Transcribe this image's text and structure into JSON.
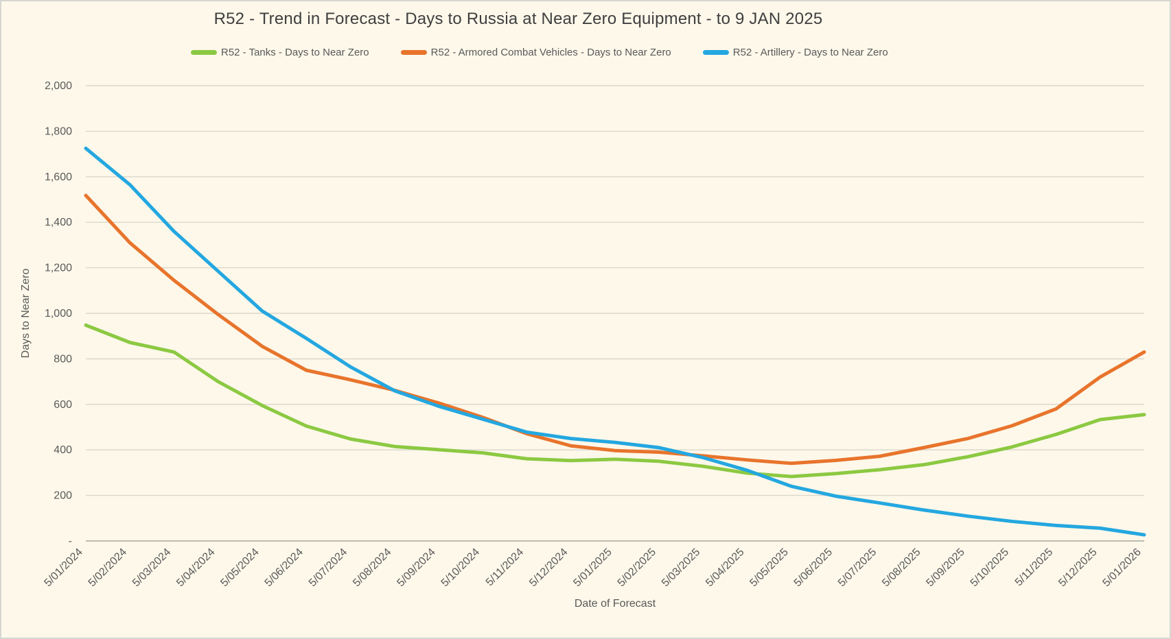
{
  "window": {
    "background": "#FDF8EA",
    "border_color": "#D8D6D2",
    "grid_color": "#D9D7CB",
    "axis_line_color": "#BDBBB1",
    "tick_text_color": "#595959",
    "title_text_color": "#3F3F3F"
  },
  "header": {
    "title": "R52 - Trend in Forecast - Days to Russia at Near Zero Equipment - to 9 JAN 2025"
  },
  "legend": {
    "items": [
      {
        "label": "R52 - Tanks - Days to Near Zero",
        "color": "#8CC942"
      },
      {
        "label": "R52 - Armored Combat Vehicles - Days to Near Zero",
        "color": "#E8742C"
      },
      {
        "label": "R52 - Artillery - Days to Near Zero",
        "color": "#24A7E0"
      }
    ]
  },
  "axes": {
    "xlabel": "Date of Forecast",
    "ylabel": "Days to Near Zero"
  },
  "chart_data": {
    "type": "line",
    "title": "R52 - Trend in Forecast - Days to Russia at Near Zero Equipment - to 9 JAN 2025",
    "xlabel": "Date of Forecast",
    "ylabel": "Days to Near Zero",
    "ylim": [
      0,
      2000
    ],
    "ytick_step": 200,
    "ytick_labels": [
      "-",
      "200",
      "400",
      "600",
      "800",
      "1,000",
      "1,200",
      "1,400",
      "1,600",
      "1,800",
      "2,000"
    ],
    "grid": "horizontal",
    "legend_position": "top",
    "x_tick_rotation": -45,
    "categories": [
      "5/01/2024",
      "5/02/2024",
      "5/03/2024",
      "5/04/2024",
      "5/05/2024",
      "5/06/2024",
      "5/07/2024",
      "5/08/2024",
      "5/09/2024",
      "5/10/2024",
      "5/11/2024",
      "5/12/2024",
      "5/01/2025",
      "5/02/2025",
      "5/03/2025",
      "5/04/2025",
      "5/05/2025",
      "5/06/2025",
      "5/07/2025",
      "5/08/2025",
      "5/09/2025",
      "5/10/2025",
      "5/11/2025",
      "5/12/2025",
      "5/01/2026"
    ],
    "series": [
      {
        "name": "R52 - Tanks - Days to Near Zero",
        "color": "#8CC942",
        "values": [
          948,
          872,
          830,
          700,
          595,
          505,
          448,
          415,
          401,
          387,
          361,
          353,
          359,
          350,
          328,
          298,
          283,
          296,
          313,
          335,
          370,
          413,
          468,
          533,
          555
        ]
      },
      {
        "name": "R52 - Armored Combat Vehicles - Days to Near Zero",
        "color": "#E8742C",
        "values": [
          1518,
          1310,
          1145,
          995,
          855,
          750,
          708,
          662,
          606,
          543,
          471,
          418,
          397,
          390,
          374,
          356,
          341,
          354,
          372,
          410,
          450,
          506,
          580,
          720,
          830
        ]
      },
      {
        "name": "R52 - Artillery - Days to Near Zero",
        "color": "#24A7E0",
        "values": [
          1725,
          1565,
          1360,
          1185,
          1010,
          890,
          765,
          660,
          592,
          535,
          478,
          450,
          433,
          410,
          366,
          310,
          240,
          197,
          167,
          136,
          109,
          86,
          68,
          56,
          27
        ]
      }
    ]
  }
}
